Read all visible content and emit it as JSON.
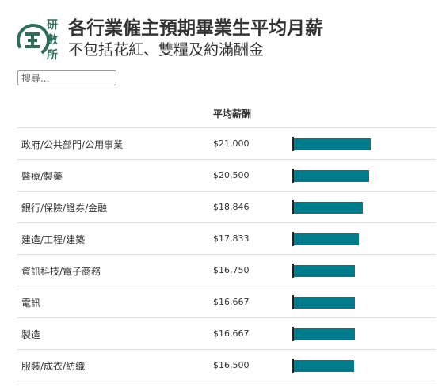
{
  "header": {
    "title": "各行業僱主預期畢業生平均月薪",
    "subtitle": "不包括花紅、雙糧及約滿酬金",
    "logo_chars": [
      "研",
      "數",
      "所"
    ],
    "logo_icon": "hk01-research-logo-icon"
  },
  "search": {
    "placeholder": "搜尋..."
  },
  "colors": {
    "bar": "#007c8a",
    "logo": "#2e6d5d"
  },
  "chart_data": {
    "type": "table",
    "columns": [
      "",
      "平均薪酬",
      ""
    ],
    "rows": [
      {
        "category": "政府/公共部門/公用事業",
        "value": 21000,
        "label": "$21,000"
      },
      {
        "category": "醫療/製藥",
        "value": 20500,
        "label": "$20,500"
      },
      {
        "category": "銀行/保險/證券/金融",
        "value": 18846,
        "label": "$18,846"
      },
      {
        "category": "建造/工程/建築",
        "value": 17833,
        "label": "$17,833"
      },
      {
        "category": "資訊科技/電子商務",
        "value": 16750,
        "label": "$16,750"
      },
      {
        "category": "電訊",
        "value": 16667,
        "label": "$16,667"
      },
      {
        "category": "製造",
        "value": 16667,
        "label": "$16,667"
      },
      {
        "category": "服裝/成衣/紡織",
        "value": 16500,
        "label": "$16,500"
      }
    ],
    "bar_max": 38000
  }
}
